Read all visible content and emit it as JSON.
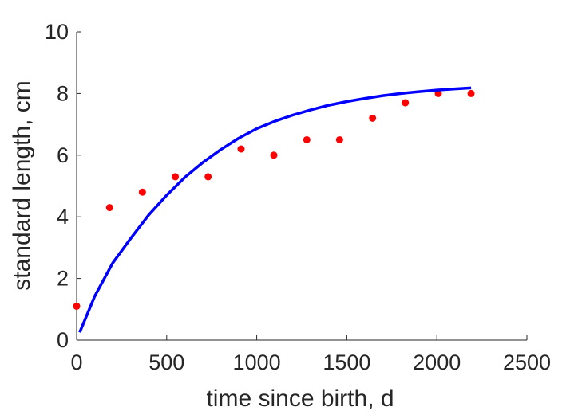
{
  "chart_data": {
    "type": "scatter",
    "title": "",
    "xlabel": "time since birth, d",
    "ylabel": "standard length, cm",
    "xlim": [
      0,
      2500
    ],
    "ylim": [
      0,
      10
    ],
    "xticks": [
      0,
      500,
      1000,
      1500,
      2000,
      2500
    ],
    "yticks": [
      0,
      2,
      4,
      6,
      8,
      10
    ],
    "xtick_labels": [
      "0",
      "500",
      "1000",
      "1500",
      "2000",
      "2500"
    ],
    "ytick_labels": [
      "0",
      "2",
      "4",
      "6",
      "8",
      "10"
    ],
    "grid": false,
    "legend": "none",
    "series": [
      {
        "kind": "scatter",
        "color": "#ff0000",
        "x": [
          0,
          183,
          365,
          548,
          730,
          913,
          1095,
          1278,
          1460,
          1643,
          1825,
          2008,
          2190
        ],
        "y": [
          1.1,
          4.3,
          4.8,
          5.3,
          5.3,
          6.2,
          6.0,
          6.5,
          6.5,
          7.2,
          7.7,
          8.0,
          8.0
        ]
      },
      {
        "kind": "line",
        "color": "#0000ff",
        "x": [
          17,
          100,
          200,
          300,
          400,
          500,
          600,
          700,
          800,
          900,
          1000,
          1100,
          1200,
          1300,
          1400,
          1500,
          1600,
          1700,
          1800,
          1900,
          2000,
          2100,
          2190
        ],
        "y": [
          0.25,
          1.42,
          2.5,
          3.3,
          4.06,
          4.7,
          5.28,
          5.76,
          6.18,
          6.55,
          6.86,
          7.1,
          7.3,
          7.47,
          7.62,
          7.74,
          7.84,
          7.93,
          8.0,
          8.06,
          8.11,
          8.15,
          8.18
        ]
      }
    ]
  }
}
